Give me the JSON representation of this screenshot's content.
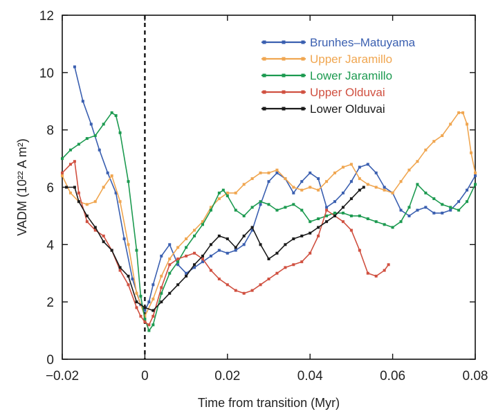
{
  "chart_data": {
    "type": "line",
    "xlabel": "Time from transition (Myr)",
    "ylabel": "VADM (10²² A m²)",
    "xlim": [
      -0.02,
      0.08
    ],
    "ylim": [
      0,
      12
    ],
    "xticks": [
      -0.02,
      0,
      0.02,
      0.04,
      0.06,
      0.08
    ],
    "xtick_labels": [
      "−0.02",
      "0",
      "0.02",
      "0.04",
      "0.06",
      "0.08"
    ],
    "yticks": [
      0,
      2,
      4,
      6,
      8,
      10,
      12
    ],
    "ytick_labels": [
      "0",
      "2",
      "4",
      "6",
      "8",
      "10",
      "12"
    ],
    "vertical_reference_line_x": 0,
    "legend_position": "top-right",
    "grid": false,
    "series": [
      {
        "name": "Brunhes–Matuyama",
        "color": "#3a5fb0",
        "x": [
          -0.017,
          -0.015,
          -0.013,
          -0.011,
          -0.009,
          -0.007,
          -0.005,
          -0.003,
          -0.001,
          0.0,
          0.001,
          0.002,
          0.004,
          0.006,
          0.008,
          0.01,
          0.012,
          0.014,
          0.016,
          0.018,
          0.02,
          0.022,
          0.024,
          0.026,
          0.028,
          0.03,
          0.032,
          0.034,
          0.036,
          0.038,
          0.04,
          0.042,
          0.044,
          0.046,
          0.048,
          0.05,
          0.052,
          0.054,
          0.056,
          0.058,
          0.06,
          0.062,
          0.064,
          0.066,
          0.068,
          0.07,
          0.072,
          0.074,
          0.076,
          0.078,
          0.08
        ],
        "y": [
          10.2,
          9.0,
          8.2,
          7.3,
          6.5,
          5.8,
          4.2,
          2.8,
          1.9,
          1.7,
          2.0,
          2.6,
          3.6,
          4.0,
          3.3,
          3.0,
          3.2,
          3.4,
          3.6,
          3.8,
          3.7,
          3.8,
          4.0,
          4.5,
          5.4,
          6.2,
          6.5,
          6.3,
          5.8,
          6.2,
          6.5,
          6.3,
          5.3,
          5.5,
          5.8,
          6.2,
          6.7,
          6.8,
          6.5,
          6.0,
          5.8,
          5.2,
          5.0,
          5.2,
          5.3,
          5.1,
          5.1,
          5.2,
          5.5,
          5.9,
          6.4
        ]
      },
      {
        "name": "Upper Jaramillo",
        "color": "#f0a650",
        "x": [
          -0.02,
          -0.018,
          -0.016,
          -0.014,
          -0.012,
          -0.01,
          -0.008,
          -0.006,
          -0.004,
          -0.002,
          0.0,
          0.002,
          0.004,
          0.006,
          0.008,
          0.01,
          0.012,
          0.014,
          0.016,
          0.018,
          0.02,
          0.022,
          0.024,
          0.026,
          0.028,
          0.03,
          0.032,
          0.034,
          0.036,
          0.038,
          0.04,
          0.042,
          0.044,
          0.046,
          0.048,
          0.05,
          0.052,
          0.054,
          0.056,
          0.058,
          0.06,
          0.062,
          0.064,
          0.066,
          0.068,
          0.07,
          0.072,
          0.074,
          0.076,
          0.077,
          0.078,
          0.079,
          0.08
        ],
        "y": [
          6.4,
          5.8,
          5.5,
          5.4,
          5.5,
          6.0,
          6.4,
          5.5,
          4.0,
          2.3,
          1.5,
          2.1,
          2.9,
          3.5,
          3.9,
          4.2,
          4.5,
          4.8,
          5.3,
          5.6,
          5.8,
          5.8,
          6.1,
          6.3,
          6.5,
          6.5,
          6.6,
          6.3,
          6.0,
          5.9,
          6.0,
          5.9,
          6.2,
          6.5,
          6.7,
          6.8,
          6.3,
          6.1,
          6.0,
          5.9,
          5.8,
          6.2,
          6.6,
          6.9,
          7.3,
          7.6,
          7.8,
          8.2,
          8.6,
          8.6,
          8.2,
          7.2,
          6.5
        ]
      },
      {
        "name": "Lower Jaramillo",
        "color": "#1c9a50",
        "x": [
          -0.02,
          -0.018,
          -0.016,
          -0.014,
          -0.012,
          -0.01,
          -0.008,
          -0.007,
          -0.006,
          -0.004,
          -0.002,
          -0.001,
          0.0,
          0.001,
          0.002,
          0.004,
          0.006,
          0.008,
          0.01,
          0.012,
          0.014,
          0.016,
          0.018,
          0.019,
          0.02,
          0.022,
          0.024,
          0.026,
          0.028,
          0.03,
          0.032,
          0.034,
          0.036,
          0.038,
          0.04,
          0.042,
          0.044,
          0.046,
          0.048,
          0.05,
          0.052,
          0.054,
          0.056,
          0.058,
          0.06,
          0.062,
          0.064,
          0.066,
          0.068,
          0.07,
          0.072,
          0.074,
          0.076,
          0.078,
          0.08
        ],
        "y": [
          7.0,
          7.3,
          7.5,
          7.7,
          7.8,
          8.2,
          8.6,
          8.5,
          7.9,
          6.2,
          3.8,
          2.2,
          1.4,
          1.0,
          1.2,
          2.3,
          3.0,
          3.4,
          3.9,
          4.3,
          4.7,
          5.2,
          5.8,
          5.9,
          5.7,
          5.2,
          5.0,
          5.3,
          5.5,
          5.4,
          5.2,
          5.3,
          5.4,
          5.2,
          4.8,
          4.9,
          5.0,
          5.1,
          5.1,
          5.0,
          5.0,
          4.9,
          4.8,
          4.7,
          4.6,
          4.8,
          5.3,
          6.1,
          5.8,
          5.6,
          5.4,
          5.3,
          5.2,
          5.5,
          6.1
        ]
      },
      {
        "name": "Upper Olduvai",
        "color": "#d05040",
        "x": [
          -0.02,
          -0.018,
          -0.017,
          -0.016,
          -0.014,
          -0.012,
          -0.01,
          -0.008,
          -0.006,
          -0.004,
          -0.002,
          -0.001,
          0.0,
          0.001,
          0.002,
          0.004,
          0.006,
          0.008,
          0.01,
          0.012,
          0.014,
          0.016,
          0.018,
          0.02,
          0.022,
          0.024,
          0.026,
          0.028,
          0.03,
          0.032,
          0.034,
          0.036,
          0.038,
          0.04,
          0.042,
          0.044,
          0.046,
          0.048,
          0.05,
          0.052,
          0.054,
          0.056,
          0.058,
          0.059
        ],
        "y": [
          6.5,
          6.8,
          6.9,
          5.8,
          4.8,
          4.5,
          4.3,
          3.8,
          3.1,
          2.6,
          1.8,
          1.5,
          1.3,
          1.2,
          1.5,
          2.5,
          3.3,
          3.5,
          3.6,
          3.7,
          3.5,
          3.1,
          2.8,
          2.6,
          2.4,
          2.3,
          2.4,
          2.6,
          2.8,
          3.0,
          3.2,
          3.3,
          3.4,
          3.7,
          4.3,
          5.2,
          5.0,
          4.8,
          4.5,
          3.8,
          3.0,
          2.9,
          3.1,
          3.3
        ]
      },
      {
        "name": "Lower Olduvai",
        "color": "#1a1a1a",
        "x": [
          -0.019,
          -0.017,
          -0.016,
          -0.014,
          -0.012,
          -0.01,
          -0.008,
          -0.006,
          -0.004,
          -0.002,
          0.0,
          0.002,
          0.004,
          0.006,
          0.008,
          0.01,
          0.012,
          0.014,
          0.016,
          0.018,
          0.02,
          0.022,
          0.024,
          0.026,
          0.028,
          0.03,
          0.032,
          0.034,
          0.036,
          0.038,
          0.04,
          0.042,
          0.044,
          0.046,
          0.048,
          0.05,
          0.052,
          0.053
        ],
        "y": [
          6.0,
          6.0,
          5.5,
          5.0,
          4.6,
          4.1,
          3.8,
          3.2,
          2.9,
          2.0,
          1.8,
          1.7,
          2.0,
          2.3,
          2.6,
          2.9,
          3.3,
          3.6,
          4.0,
          4.3,
          4.2,
          3.9,
          4.3,
          4.6,
          4.0,
          3.5,
          3.7,
          4.0,
          4.2,
          4.3,
          4.4,
          4.6,
          4.8,
          5.0,
          5.3,
          5.6,
          5.9,
          6.0
        ]
      }
    ]
  }
}
